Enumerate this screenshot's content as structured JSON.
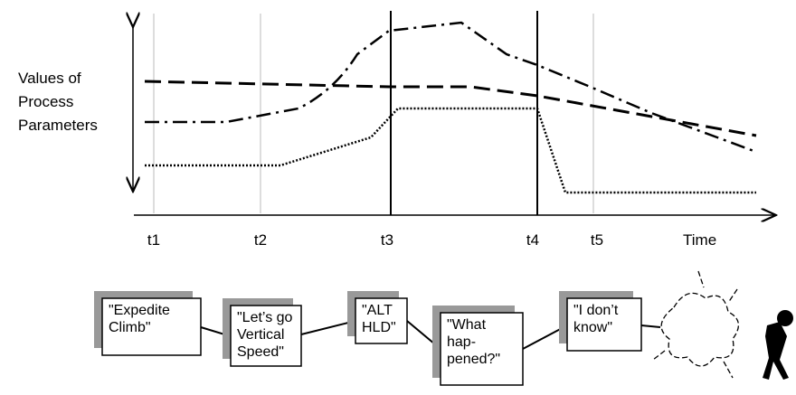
{
  "axis": {
    "y_label": [
      "Values of",
      "Process",
      "Parameters"
    ],
    "x_ticks": [
      "t1",
      "t2",
      "t3",
      "t4",
      "t5"
    ],
    "x_label": "Time"
  },
  "boxes": [
    {
      "lines": [
        "\"Expedite",
        "Climb\""
      ]
    },
    {
      "lines": [
        "\"Let’s go",
        "Vertical",
        "Speed\""
      ]
    },
    {
      "lines": [
        "\"ALT",
        "HLD\""
      ]
    },
    {
      "lines": [
        "\"What",
        "hap-",
        "pened?\""
      ]
    },
    {
      "lines": [
        "\"I don’t",
        "know\""
      ]
    }
  ]
}
